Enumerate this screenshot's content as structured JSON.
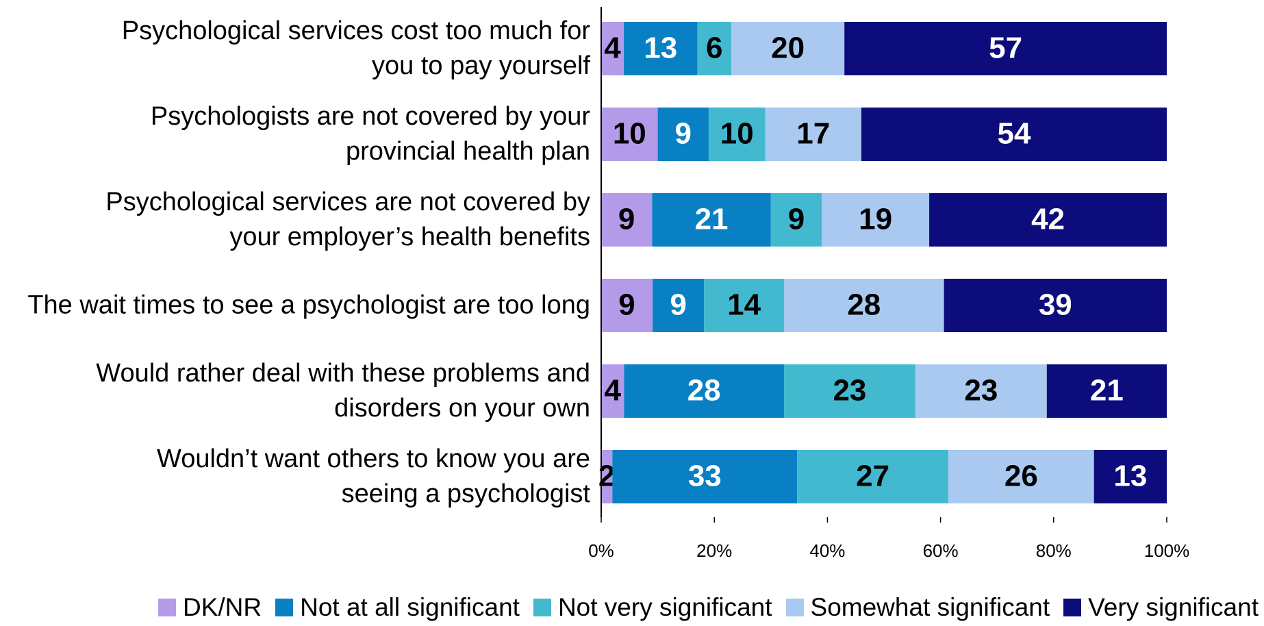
{
  "chart_data": {
    "type": "stacked_bar_horizontal",
    "categories": [
      "Psychological services cost too much for\nyou to pay yourself",
      "Psychologists are not covered by your\nprovincial health plan",
      "Psychological services are not covered by\nyour employer’s health benefits",
      "The wait times to see a psychologist are too long",
      "Would rather deal with these problems and\ndisorders on your own",
      "Wouldn’t want others to know you are\nseeing a psychologist"
    ],
    "series": [
      {
        "name": "DK/NR",
        "color": "#b39be9",
        "label_color": "#000000",
        "values": [
          4,
          10,
          9,
          9,
          4,
          2
        ]
      },
      {
        "name": "Not at all significant",
        "color": "#0a80c4",
        "label_color": "#ffffff",
        "values": [
          13,
          9,
          21,
          9,
          28,
          33
        ]
      },
      {
        "name": "Not very significant",
        "color": "#43b9d0",
        "label_color": "#000000",
        "values": [
          6,
          10,
          9,
          14,
          23,
          27
        ]
      },
      {
        "name": "Somewhat significant",
        "color": "#a9c9f0",
        "label_color": "#000000",
        "values": [
          20,
          17,
          19,
          28,
          23,
          26
        ]
      },
      {
        "name": "Very significant",
        "color": "#0c0c7c",
        "label_color": "#ffffff",
        "values": [
          57,
          54,
          42,
          39,
          21,
          13
        ]
      }
    ],
    "xlim": [
      0,
      100
    ],
    "xticks": [
      {
        "value": 0,
        "label": "0%"
      },
      {
        "value": 20,
        "label": "20%"
      },
      {
        "value": 40,
        "label": "40%"
      },
      {
        "value": 60,
        "label": "60%"
      },
      {
        "value": 80,
        "label": "80%"
      },
      {
        "value": 100,
        "label": "100%"
      }
    ],
    "legend": "bottom"
  }
}
